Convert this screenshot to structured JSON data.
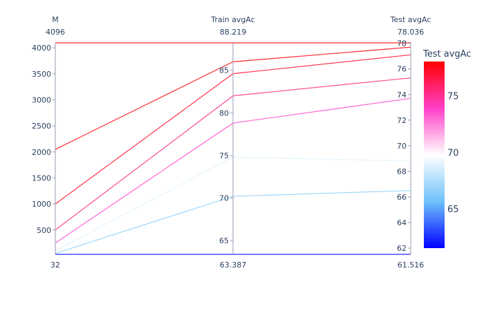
{
  "chart_data": {
    "type": "parallel_coordinates",
    "dimensions": [
      {
        "label": "M",
        "range": [
          32,
          4096
        ],
        "range_labels": [
          "32",
          "4096"
        ],
        "ticks": [
          500,
          1000,
          1500,
          2000,
          2500,
          3000,
          3500,
          4000
        ]
      },
      {
        "label": "Train avgAc",
        "range": [
          63.387,
          88.219
        ],
        "range_labels": [
          "63.387",
          "88.219"
        ],
        "ticks": [
          65,
          70,
          75,
          80,
          85
        ]
      },
      {
        "label": "Test avgAc",
        "range": [
          61.516,
          78.036
        ],
        "range_labels": [
          "61.516",
          "78.036"
        ],
        "ticks": [
          62,
          64,
          66,
          68,
          70,
          72,
          74,
          76,
          78
        ]
      }
    ],
    "lines": [
      [
        32,
        63.387,
        61.516
      ],
      [
        50,
        70.2,
        66.5
      ],
      [
        100,
        74.8,
        68.8
      ],
      [
        250,
        78.8,
        73.7
      ],
      [
        500,
        82.0,
        75.3
      ],
      [
        1000,
        84.6,
        77.1
      ],
      [
        2048,
        86.0,
        77.7
      ],
      [
        4096,
        88.219,
        78.036
      ]
    ],
    "colorbar": {
      "title": "Test avgAc",
      "range": [
        61.516,
        78.036
      ],
      "ticks": [
        65,
        70,
        75
      ],
      "colorscale": [
        "#0000ff",
        "#6fc2fb",
        "#ffffff",
        "#ff3fc8",
        "#ff0000"
      ]
    }
  }
}
